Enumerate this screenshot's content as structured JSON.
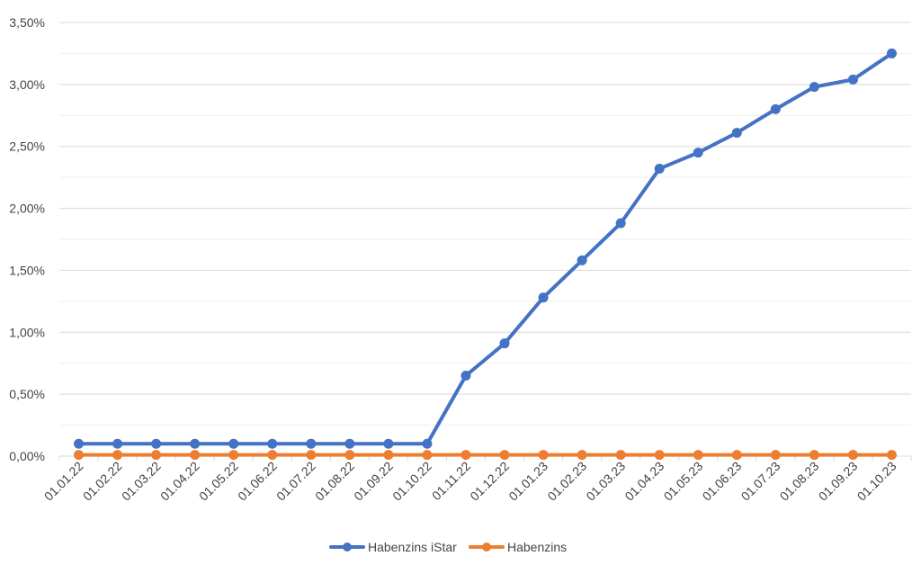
{
  "chart_data": {
    "type": "line",
    "categories": [
      "01.01.22",
      "01.02.22",
      "01.03.22",
      "01.04.22",
      "01.05.22",
      "01.06.22",
      "01.07.22",
      "01.08.22",
      "01.09.22",
      "01.10.22",
      "01.11.22",
      "01.12.22",
      "01.01.23",
      "01.02.23",
      "01.03.23",
      "01.04.23",
      "01.05.23",
      "01.06.23",
      "01.07.23",
      "01.08.23",
      "01.09.23",
      "01.10.23"
    ],
    "series": [
      {
        "name": "Habenzins iStar",
        "color": "#4472C4",
        "values": [
          0.1,
          0.1,
          0.1,
          0.1,
          0.1,
          0.1,
          0.1,
          0.1,
          0.1,
          0.1,
          0.65,
          0.91,
          1.28,
          1.58,
          1.88,
          2.32,
          2.45,
          2.61,
          2.8,
          2.98,
          3.04,
          3.25
        ]
      },
      {
        "name": "Habenzins",
        "color": "#ED7D31",
        "values": [
          0.01,
          0.01,
          0.01,
          0.01,
          0.01,
          0.01,
          0.01,
          0.01,
          0.01,
          0.01,
          0.01,
          0.01,
          0.01,
          0.01,
          0.01,
          0.01,
          0.01,
          0.01,
          0.01,
          0.01,
          0.01,
          0.01
        ]
      }
    ],
    "y_ticks": [
      "0,00%",
      "0,50%",
      "1,00%",
      "1,50%",
      "2,00%",
      "2,50%",
      "3,00%",
      "3,50%"
    ],
    "ylim": [
      0,
      3.5
    ],
    "grid": true,
    "legend_position": "bottom",
    "title": "",
    "xlabel": "",
    "ylabel": ""
  }
}
